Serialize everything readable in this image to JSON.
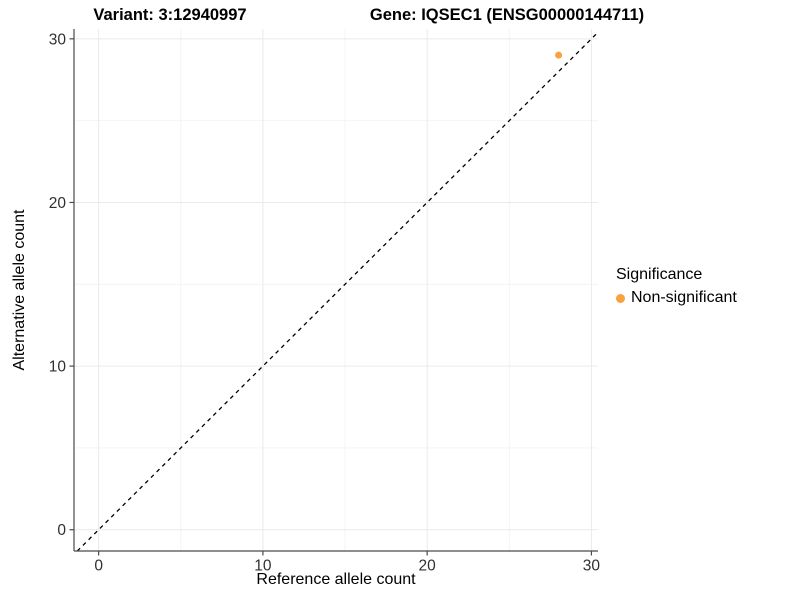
{
  "chart_data": {
    "type": "scatter",
    "title_variant": "Variant: 3:12940997",
    "title_gene": "Gene: IQSEC1 (ENSG00000144711)",
    "xlabel": "Reference allele count",
    "ylabel": "Alternative allele count",
    "x_ticks": [
      0,
      10,
      20,
      30
    ],
    "y_ticks": [
      0,
      10,
      20,
      30
    ],
    "x_minor_ticks": [
      5,
      15,
      25
    ],
    "y_minor_ticks": [
      5,
      15,
      25
    ],
    "xlim": [
      -1.5,
      30.4
    ],
    "ylim": [
      -1.3,
      30.6
    ],
    "grid": "major+minor",
    "points": [
      {
        "x": 28,
        "y": 29,
        "significance": "Non-significant"
      }
    ],
    "identity_line": {
      "style": "dashed",
      "slope": 1,
      "intercept": 0,
      "color": "#000000"
    },
    "legend": {
      "title": "Significance",
      "position": "right",
      "items": [
        {
          "label": "Non-significant",
          "color": "#F9A13C"
        }
      ]
    },
    "colors": {
      "point": "#F9A13C",
      "grid_major": "#EAEAEA",
      "grid_minor": "#F4F4F4",
      "axis": "#4A4A4A",
      "tick_text": "#303030",
      "title_text": "#000000",
      "background": "#FFFFFF"
    }
  }
}
